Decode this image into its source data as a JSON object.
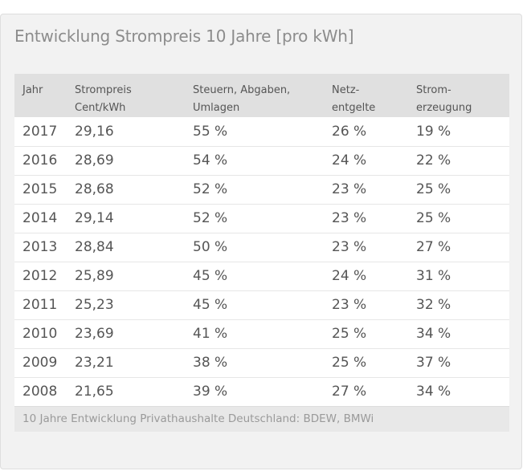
{
  "card": {
    "title": "Entwicklung Strompreis 10 Jahre [pro kWh]"
  },
  "table": {
    "headers": [
      {
        "line1": "Jahr",
        "line2": ""
      },
      {
        "line1": "Strompreis",
        "line2": "Cent/kWh"
      },
      {
        "line1": "Steuern, Abgaben,",
        "line2": "Umlagen"
      },
      {
        "line1": "Netz-",
        "line2": "entgelte"
      },
      {
        "line1": "Strom-",
        "line2": "erzeugung"
      }
    ],
    "rows": [
      [
        "2017",
        "29,16",
        "55 %",
        "26 %",
        "19 %"
      ],
      [
        "2016",
        "28,69",
        "54 %",
        "24 %",
        "22 %"
      ],
      [
        "2015",
        "28,68",
        "52 %",
        "23 %",
        "25 %"
      ],
      [
        "2014",
        "29,14",
        "52 %",
        "23 %",
        "25 %"
      ],
      [
        "2013",
        "28,84",
        "50 %",
        "23 %",
        "27 %"
      ],
      [
        "2012",
        "25,89",
        "45 %",
        "24 %",
        "31 %"
      ],
      [
        "2011",
        "25,23",
        "45 %",
        "23 %",
        "32 %"
      ],
      [
        "2010",
        "23,69",
        "41 %",
        "25 %",
        "34 %"
      ],
      [
        "2009",
        "23,21",
        "38 %",
        "25 %",
        "37 %"
      ],
      [
        "2008",
        "21,65",
        "39 %",
        "27 %",
        "34 %"
      ]
    ],
    "caption": "10 Jahre Entwicklung Privathaushalte Deutschland: BDEW, BMWi"
  }
}
